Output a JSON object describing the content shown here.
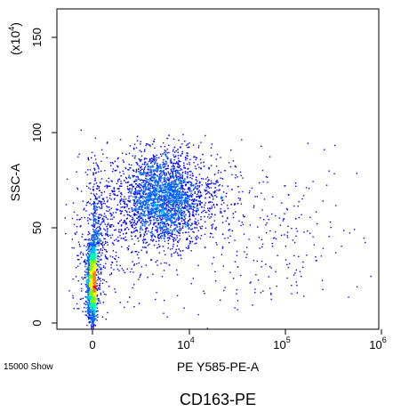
{
  "chart_data": {
    "type": "scatter",
    "title": "CD163-PE",
    "xlabel": "PE Y585-PE-A",
    "ylabel": "SSC-A",
    "y_multiplier_label": "(x10",
    "y_multiplier_exp": "4",
    "y_multiplier_close": ")",
    "event_label": "15000 Show",
    "x_scale": "biexponential",
    "y_scale": "linear",
    "xlim": [
      -300,
      1000000
    ],
    "ylim": [
      -3,
      160
    ],
    "x_ticks": [
      {
        "value": 0,
        "base": "0",
        "exp": ""
      },
      {
        "value": 10000,
        "base": "10",
        "exp": "4"
      },
      {
        "value": 100000,
        "base": "10",
        "exp": "5"
      },
      {
        "value": 1000000,
        "base": "10",
        "exp": "6"
      }
    ],
    "y_ticks": [
      {
        "value": 0,
        "label": "0"
      },
      {
        "value": 50,
        "label": "50"
      },
      {
        "value": 100,
        "label": "100"
      },
      {
        "value": 150,
        "label": "150"
      }
    ],
    "populations": [
      {
        "name": "",
        "count": 3200,
        "x_center": 0,
        "x_spread": 30,
        "y_center": 22,
        "y_spread": 9
      },
      {
        "name": "",
        "count": 3400,
        "x_center": 4000,
        "x_spread_log": 0.35,
        "y_center": 66,
        "y_spread": 12
      },
      {
        "name": "",
        "count": 800,
        "x_center": 300,
        "x_spread_log": 0.6,
        "y_center": 45,
        "y_spread": 20
      },
      {
        "name": "",
        "count": 250,
        "x_center": 60000,
        "x_spread_log": 0.5,
        "y_center": 45,
        "y_spread": 20
      }
    ],
    "density_colors": [
      "#0000ff",
      "#0060ff",
      "#00c0ff",
      "#00ffa0",
      "#80ff00",
      "#ffff00",
      "#ff8000",
      "#ff0000"
    ],
    "grid": false
  }
}
